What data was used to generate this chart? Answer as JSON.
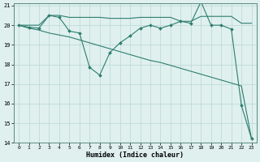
{
  "xlabel": "Humidex (Indice chaleur)",
  "x": [
    0,
    1,
    2,
    3,
    4,
    5,
    6,
    7,
    8,
    9,
    10,
    11,
    12,
    13,
    14,
    15,
    16,
    17,
    18,
    19,
    20,
    21,
    22,
    23
  ],
  "line_flat": [
    20.0,
    20.0,
    20.0,
    20.5,
    20.5,
    20.4,
    20.4,
    20.4,
    20.4,
    20.35,
    20.35,
    20.35,
    20.4,
    20.4,
    20.4,
    20.4,
    20.2,
    20.2,
    20.45,
    20.45,
    20.45,
    20.45,
    20.1,
    20.1
  ],
  "line_zigzag": [
    20.0,
    19.9,
    19.85,
    20.5,
    20.4,
    19.7,
    19.6,
    17.85,
    17.45,
    18.6,
    19.1,
    19.45,
    19.85,
    20.0,
    19.85,
    20.0,
    20.2,
    20.1,
    21.2,
    20.0,
    20.0,
    19.8,
    15.9,
    14.2
  ],
  "line_diag": [
    20.0,
    19.85,
    19.75,
    19.6,
    19.5,
    19.4,
    19.25,
    19.1,
    18.95,
    18.8,
    18.65,
    18.5,
    18.35,
    18.2,
    18.1,
    17.95,
    17.8,
    17.65,
    17.5,
    17.35,
    17.2,
    17.05,
    16.9,
    14.2
  ],
  "line_color": "#2e7d6e",
  "background_color": "#dff0ef",
  "grid_color": "#b8d8d5",
  "ylim": [
    14,
    21
  ],
  "xlim": [
    -0.5,
    23.5
  ],
  "yticks": [
    14,
    15,
    16,
    17,
    18,
    19,
    20,
    21
  ],
  "xticks": [
    0,
    1,
    2,
    3,
    4,
    5,
    6,
    7,
    8,
    9,
    10,
    11,
    12,
    13,
    14,
    15,
    16,
    17,
    18,
    19,
    20,
    21,
    22,
    23
  ]
}
